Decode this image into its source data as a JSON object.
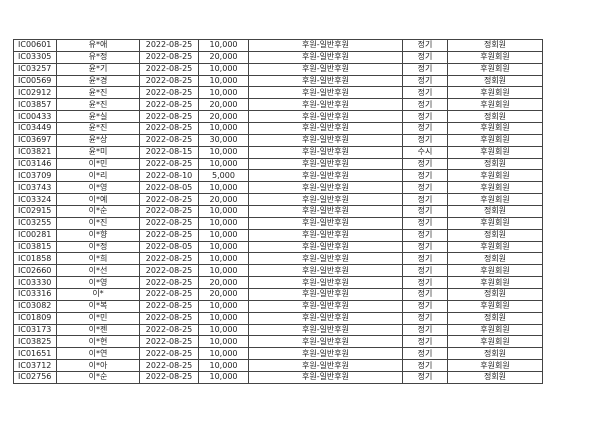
{
  "rows": [
    [
      "IC00601",
      "유*애",
      "2022-08-25",
      "10,000",
      "후원-일반후원",
      "정기",
      "정회원"
    ],
    [
      "IC03305",
      "유*정",
      "2022-08-25",
      "20,000",
      "후원-일반후원",
      "정기",
      "후원회원"
    ],
    [
      "IC03257",
      "윤*기",
      "2022-08-25",
      "10,000",
      "후원-일반후원",
      "정기",
      "후원회원"
    ],
    [
      "IC00569",
      "윤*경",
      "2022-08-25",
      "10,000",
      "후원-일반후원",
      "정기",
      "정회원"
    ],
    [
      "IC02912",
      "윤*진",
      "2022-08-25",
      "10,000",
      "후원-일반후원",
      "정기",
      "후원회원"
    ],
    [
      "IC03857",
      "윤*진",
      "2022-08-25",
      "20,000",
      "후원-일반후원",
      "정기",
      "후원회원"
    ],
    [
      "IC00433",
      "윤*실",
      "2022-08-25",
      "20,000",
      "후원-일반후원",
      "정기",
      "정회원"
    ],
    [
      "IC03449",
      "윤*진",
      "2022-08-25",
      "10,000",
      "후원-일반후원",
      "정기",
      "후원회원"
    ],
    [
      "IC03697",
      "윤*상",
      "2022-08-25",
      "30,000",
      "후원-일반후원",
      "정기",
      "후원회원"
    ],
    [
      "IC03821",
      "윤*미",
      "2022-08-15",
      "10,000",
      "후원-일반후원",
      "수시",
      "후원회원"
    ],
    [
      "IC03146",
      "이*민",
      "2022-08-25",
      "10,000",
      "후원-일반후원",
      "정기",
      "정회원"
    ],
    [
      "IC03709",
      "이*리",
      "2022-08-10",
      "5,000",
      "후원-일반후원",
      "정기",
      "후원회원"
    ],
    [
      "IC03743",
      "이*영",
      "2022-08-05",
      "10,000",
      "후원-일반후원",
      "정기",
      "후원회원"
    ],
    [
      "IC03324",
      "이*예",
      "2022-08-25",
      "20,000",
      "후원-일반후원",
      "정기",
      "후원회원"
    ],
    [
      "IC02915",
      "이*순",
      "2022-08-25",
      "10,000",
      "후원-일반후원",
      "정기",
      "정회원"
    ],
    [
      "IC03255",
      "이*진",
      "2022-08-25",
      "10,000",
      "후원-일반후원",
      "정기",
      "후원회원"
    ],
    [
      "IC00281",
      "이*향",
      "2022-08-25",
      "10,000",
      "후원-일반후원",
      "정기",
      "정회원"
    ],
    [
      "IC03815",
      "이*정",
      "2022-08-05",
      "10,000",
      "후원-일반후원",
      "정기",
      "후원회원"
    ],
    [
      "IC01858",
      "이*희",
      "2022-08-25",
      "10,000",
      "후원-일반후원",
      "정기",
      "정회원"
    ],
    [
      "IC02660",
      "이*선",
      "2022-08-25",
      "10,000",
      "후원-일반후원",
      "정기",
      "후원회원"
    ],
    [
      "IC03330",
      "이*영",
      "2022-08-25",
      "20,000",
      "후원-일반후원",
      "정기",
      "후원회원"
    ],
    [
      "IC03316",
      "이*",
      "2022-08-25",
      "20,000",
      "후원-일반후원",
      "정기",
      "정회원"
    ],
    [
      "IC03082",
      "이*복",
      "2022-08-25",
      "10,000",
      "후원-일반후원",
      "정기",
      "후원회원"
    ],
    [
      "IC01809",
      "이*민",
      "2022-08-25",
      "10,000",
      "후원-일반후원",
      "정기",
      "정회원"
    ],
    [
      "IC03173",
      "이*젠",
      "2022-08-25",
      "10,000",
      "후원-일반후원",
      "정기",
      "후원회원"
    ],
    [
      "IC03825",
      "이*현",
      "2022-08-25",
      "10,000",
      "후원-일반후원",
      "정기",
      "후원회원"
    ],
    [
      "IC01651",
      "이*연",
      "2022-08-25",
      "10,000",
      "후원-일반후원",
      "정기",
      "정회원"
    ],
    [
      "IC03712",
      "이*아",
      "2022-08-25",
      "10,000",
      "후원-일반후원",
      "정기",
      "후원회원"
    ],
    [
      "IC02756",
      "이*순",
      "2022-08-25",
      "10,000",
      "후원-일반후원",
      "정기",
      "정회원"
    ]
  ]
}
